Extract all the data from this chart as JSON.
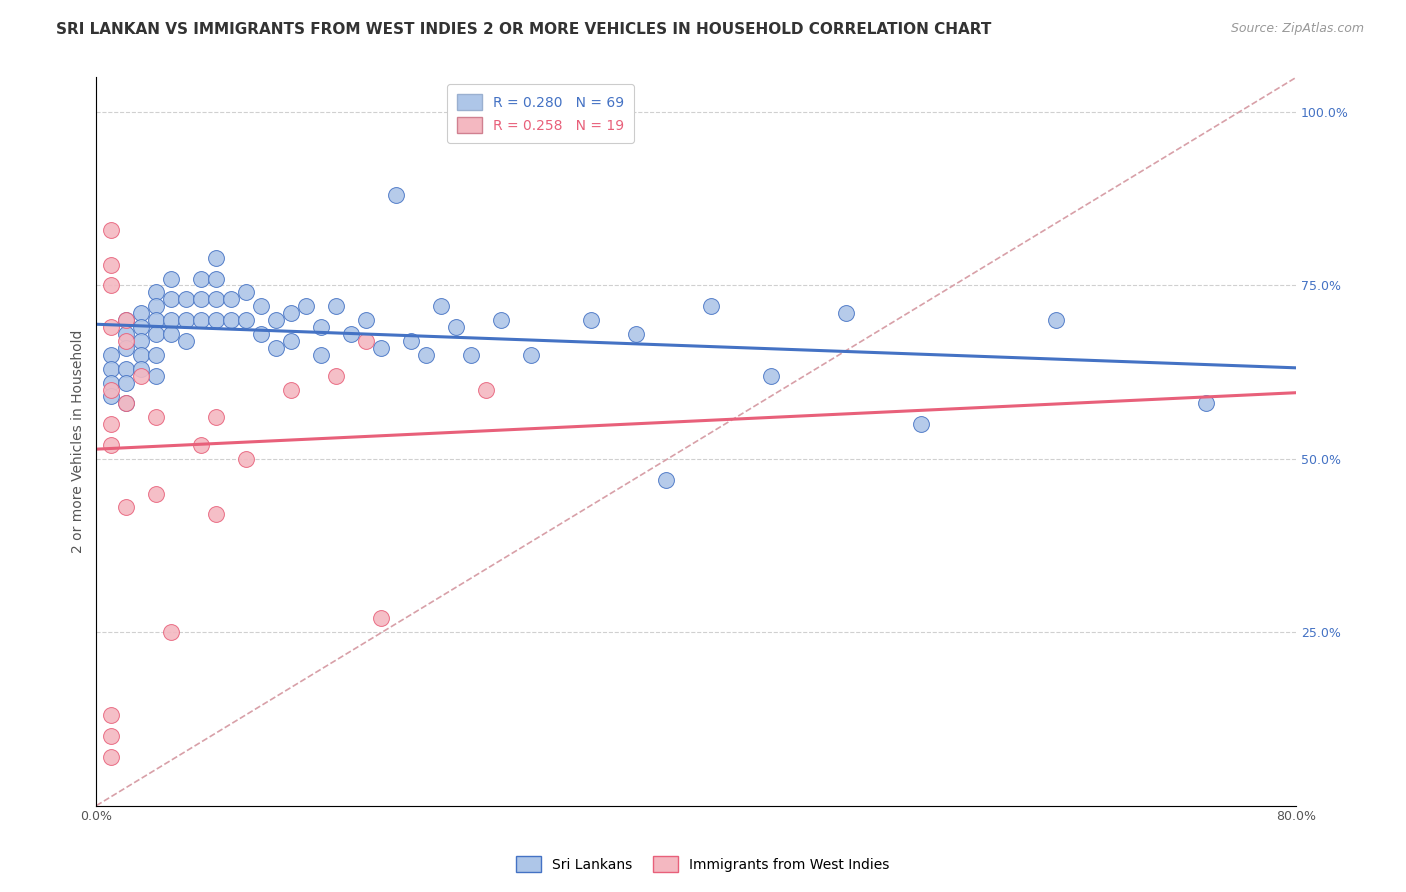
{
  "title": "SRI LANKAN VS IMMIGRANTS FROM WEST INDIES 2 OR MORE VEHICLES IN HOUSEHOLD CORRELATION CHART",
  "source": "Source: ZipAtlas.com",
  "ylabel": "2 or more Vehicles in Household",
  "right_yticks": [
    "25.0%",
    "50.0%",
    "75.0%",
    "100.0%"
  ],
  "right_ytick_vals": [
    0.25,
    0.5,
    0.75,
    1.0
  ],
  "xmin": 0.0,
  "xmax": 0.8,
  "ymin": 0.0,
  "ymax": 1.05,
  "legend_entries": [
    {
      "label": "R = 0.280   N = 69",
      "color": "#aec6e8"
    },
    {
      "label": "R = 0.258   N = 19",
      "color": "#f4b8c1"
    }
  ],
  "sri_lankan_x": [
    0.01,
    0.01,
    0.01,
    0.01,
    0.02,
    0.02,
    0.02,
    0.02,
    0.02,
    0.02,
    0.03,
    0.03,
    0.03,
    0.03,
    0.03,
    0.04,
    0.04,
    0.04,
    0.04,
    0.04,
    0.04,
    0.05,
    0.05,
    0.05,
    0.05,
    0.06,
    0.06,
    0.06,
    0.07,
    0.07,
    0.07,
    0.08,
    0.08,
    0.08,
    0.08,
    0.09,
    0.09,
    0.1,
    0.1,
    0.11,
    0.11,
    0.12,
    0.12,
    0.13,
    0.13,
    0.14,
    0.15,
    0.15,
    0.16,
    0.17,
    0.18,
    0.19,
    0.2,
    0.21,
    0.22,
    0.23,
    0.24,
    0.25,
    0.27,
    0.29,
    0.33,
    0.36,
    0.38,
    0.41,
    0.45,
    0.5,
    0.55,
    0.64,
    0.74
  ],
  "sri_lankan_y": [
    0.65,
    0.63,
    0.61,
    0.59,
    0.7,
    0.68,
    0.66,
    0.63,
    0.61,
    0.58,
    0.71,
    0.69,
    0.67,
    0.65,
    0.63,
    0.74,
    0.72,
    0.7,
    0.68,
    0.65,
    0.62,
    0.76,
    0.73,
    0.7,
    0.68,
    0.73,
    0.7,
    0.67,
    0.76,
    0.73,
    0.7,
    0.79,
    0.76,
    0.73,
    0.7,
    0.73,
    0.7,
    0.74,
    0.7,
    0.72,
    0.68,
    0.7,
    0.66,
    0.71,
    0.67,
    0.72,
    0.69,
    0.65,
    0.72,
    0.68,
    0.7,
    0.66,
    0.88,
    0.67,
    0.65,
    0.72,
    0.69,
    0.65,
    0.7,
    0.65,
    0.7,
    0.68,
    0.47,
    0.72,
    0.62,
    0.71,
    0.55,
    0.7,
    0.58
  ],
  "west_indies_x": [
    0.01,
    0.01,
    0.01,
    0.01,
    0.01,
    0.01,
    0.01,
    0.02,
    0.02,
    0.02,
    0.03,
    0.04,
    0.07,
    0.08,
    0.1,
    0.13,
    0.16,
    0.18,
    0.26
  ],
  "west_indies_y": [
    0.83,
    0.78,
    0.75,
    0.69,
    0.6,
    0.55,
    0.52,
    0.7,
    0.67,
    0.58,
    0.62,
    0.56,
    0.52,
    0.56,
    0.5,
    0.6,
    0.62,
    0.67,
    0.6
  ],
  "west_low_x": [
    0.01,
    0.01,
    0.01,
    0.02,
    0.04,
    0.05,
    0.08,
    0.19
  ],
  "west_low_y": [
    0.13,
    0.1,
    0.07,
    0.43,
    0.45,
    0.25,
    0.42,
    0.27
  ],
  "sri_color": "#aec6e8",
  "west_color": "#f4b8c1",
  "sri_line_color": "#4472C4",
  "west_line_color": "#e8607a",
  "diag_line_color": "#d8a0a8",
  "title_fontsize": 11,
  "source_fontsize": 9,
  "axis_label_fontsize": 10,
  "tick_fontsize": 9,
  "legend_fontsize": 10
}
